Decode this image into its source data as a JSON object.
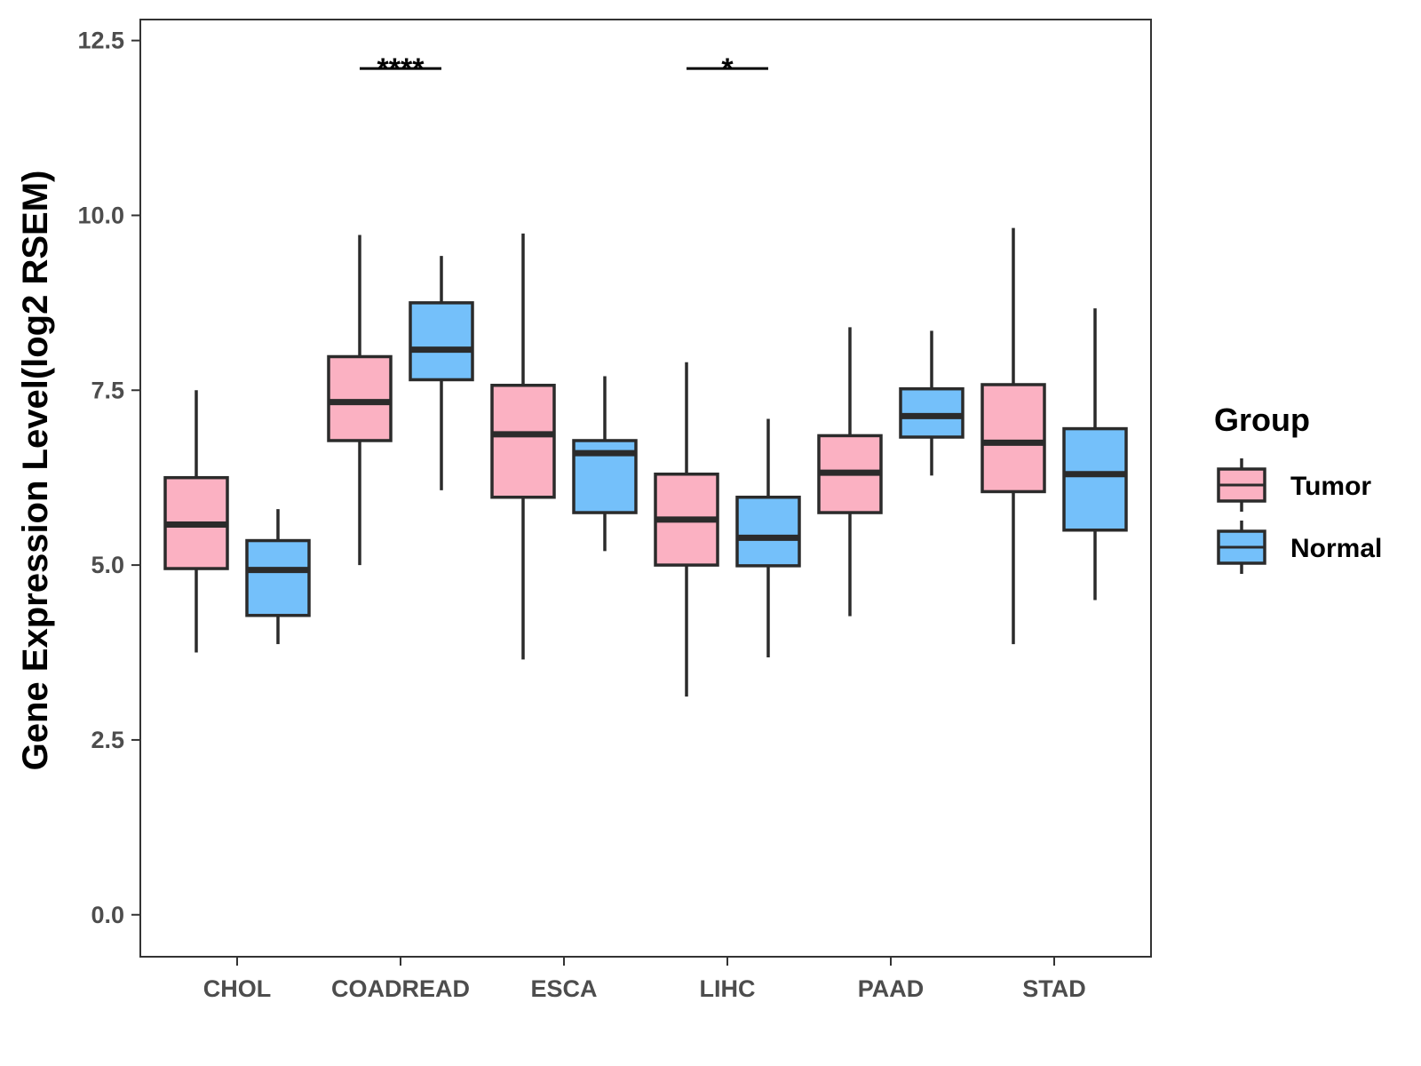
{
  "chart_data": {
    "type": "boxplot",
    "title": "",
    "xlabel": "",
    "ylabel": "Gene Expression Level(log2 RSEM)",
    "ylim": [
      -0.6,
      12.8
    ],
    "yticks": [
      0.0,
      2.5,
      5.0,
      7.5,
      10.0,
      12.5
    ],
    "ytick_labels": [
      "0.0",
      "2.5",
      "5.0",
      "7.5",
      "10.0",
      "12.5"
    ],
    "categories": [
      "CHOL",
      "COADREAD",
      "ESCA",
      "LIHC",
      "PAAD",
      "STAD"
    ],
    "legend": {
      "title": "Group",
      "position": "right",
      "entries": [
        {
          "name": "Tumor",
          "color": "#fbb1c2"
        },
        {
          "name": "Normal",
          "color": "#74c0fa"
        }
      ]
    },
    "series": [
      {
        "name": "Tumor",
        "color": "#fbb1c2",
        "boxes": [
          {
            "category": "CHOL",
            "whisker_low": 3.75,
            "q1": 4.95,
            "median": 5.58,
            "q3": 6.25,
            "whisker_high": 7.5
          },
          {
            "category": "COADREAD",
            "whisker_low": 5.0,
            "q1": 6.78,
            "median": 7.33,
            "q3": 7.98,
            "whisker_high": 9.72
          },
          {
            "category": "ESCA",
            "whisker_low": 3.65,
            "q1": 5.97,
            "median": 6.87,
            "q3": 7.57,
            "whisker_high": 9.74
          },
          {
            "category": "LIHC",
            "whisker_low": 3.12,
            "q1": 5.0,
            "median": 5.65,
            "q3": 6.3,
            "whisker_high": 7.9
          },
          {
            "category": "PAAD",
            "whisker_low": 4.27,
            "q1": 5.75,
            "median": 6.32,
            "q3": 6.85,
            "whisker_high": 8.4
          },
          {
            "category": "STAD",
            "whisker_low": 3.87,
            "q1": 6.05,
            "median": 6.75,
            "q3": 7.58,
            "whisker_high": 9.82
          }
        ]
      },
      {
        "name": "Normal",
        "color": "#74c0fa",
        "boxes": [
          {
            "category": "CHOL",
            "whisker_low": 3.87,
            "q1": 4.28,
            "median": 4.93,
            "q3": 5.35,
            "whisker_high": 5.8
          },
          {
            "category": "COADREAD",
            "whisker_low": 6.07,
            "q1": 7.65,
            "median": 8.08,
            "q3": 8.75,
            "whisker_high": 9.42
          },
          {
            "category": "ESCA",
            "whisker_low": 5.2,
            "q1": 5.75,
            "median": 6.6,
            "q3": 6.78,
            "whisker_high": 7.7
          },
          {
            "category": "LIHC",
            "whisker_low": 3.68,
            "q1": 4.99,
            "median": 5.39,
            "q3": 5.97,
            "whisker_high": 7.09
          },
          {
            "category": "PAAD",
            "whisker_low": 6.28,
            "q1": 6.83,
            "median": 7.13,
            "q3": 7.52,
            "whisker_high": 8.35
          },
          {
            "category": "STAD",
            "whisker_low": 4.5,
            "q1": 5.5,
            "median": 6.3,
            "q3": 6.95,
            "whisker_high": 8.67
          }
        ]
      }
    ],
    "annotations": [
      {
        "category": "COADREAD",
        "text": "****",
        "y": 12.1
      },
      {
        "category": "LIHC",
        "text": "*",
        "y": 12.1
      }
    ],
    "grid": false
  }
}
